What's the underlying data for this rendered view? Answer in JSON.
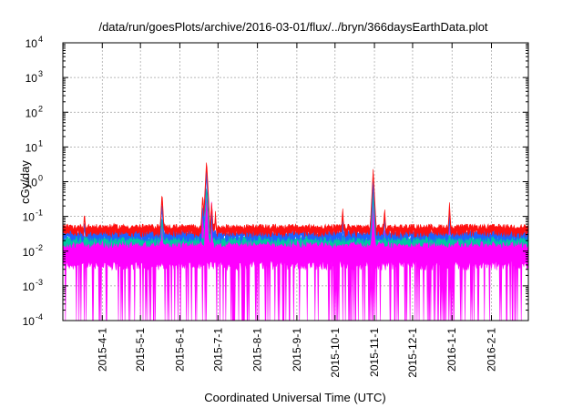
{
  "chart_data": {
    "type": "line",
    "title": "/data/run/goesPlots/archive/2016-03-01/flux/../bryn/366daysEarthData.plot",
    "xlabel": "Coordinated Universal Time (UTC)",
    "ylabel": "cGy/day",
    "xlim": [
      "2015-03-01",
      "2016-03-01"
    ],
    "ylim": [
      0.0001,
      10000
    ],
    "yscale": "log",
    "grid": true,
    "x_ticks": [
      "2015-4-1",
      "2015-5-1",
      "2015-6-1",
      "2015-7-1",
      "2015-8-1",
      "2015-9-1",
      "2015-10-1",
      "2015-11-1",
      "2015-12-1",
      "2016-1-1",
      "2016-2-1"
    ],
    "y_ticks": [
      {
        "base": "10",
        "exp": "-4",
        "value": 0.0001
      },
      {
        "base": "10",
        "exp": "-3",
        "value": 0.001
      },
      {
        "base": "10",
        "exp": "-2",
        "value": 0.01
      },
      {
        "base": "10",
        "exp": "-1",
        "value": 0.1
      },
      {
        "base": "10",
        "exp": "0",
        "value": 1
      },
      {
        "base": "10",
        "exp": "1",
        "value": 10
      },
      {
        "base": "10",
        "exp": "2",
        "value": 100
      },
      {
        "base": "10",
        "exp": "3",
        "value": 1000
      },
      {
        "base": "10",
        "exp": "4",
        "value": 10000
      }
    ],
    "series": [
      {
        "color": "#ff00ff",
        "baseline": 0.02,
        "low": 0.004,
        "dropouts_to": 0.0001,
        "spikes": [
          {
            "x": "2015-03-18",
            "y": 0.04
          },
          {
            "x": "2015-05-18",
            "y": 0.1
          },
          {
            "x": "2015-06-19",
            "y": 0.2
          },
          {
            "x": "2015-06-22",
            "y": 0.5
          },
          {
            "x": "2015-06-26",
            "y": 0.3
          },
          {
            "x": "2015-10-31",
            "y": 0.3
          },
          {
            "x": "2015-11-09",
            "y": 0.05
          },
          {
            "x": "2015-12-30",
            "y": 0.05
          }
        ]
      },
      {
        "color": "#00c8a0",
        "baseline": 0.025,
        "spikes": [
          {
            "x": "2015-05-18",
            "y": 0.12
          },
          {
            "x": "2015-06-22",
            "y": 0.8
          },
          {
            "x": "2015-06-26",
            "y": 0.15
          },
          {
            "x": "2015-10-31",
            "y": 0.5
          }
        ]
      },
      {
        "color": "#1e60ff",
        "baseline": 0.035,
        "spikes": [
          {
            "x": "2015-03-18",
            "y": 0.09
          },
          {
            "x": "2015-05-18",
            "y": 0.3
          },
          {
            "x": "2015-06-19",
            "y": 0.25
          },
          {
            "x": "2015-06-22",
            "y": 2.5
          },
          {
            "x": "2015-06-26",
            "y": 0.15
          },
          {
            "x": "2015-10-07",
            "y": 0.09
          },
          {
            "x": "2015-10-31",
            "y": 1.2
          },
          {
            "x": "2015-11-09",
            "y": 0.12
          },
          {
            "x": "2015-12-30",
            "y": 0.12
          }
        ]
      },
      {
        "color": "#ff1010",
        "baseline": 0.05,
        "spikes": [
          {
            "x": "2015-03-18",
            "y": 0.15
          },
          {
            "x": "2015-04-10",
            "y": 0.08
          },
          {
            "x": "2015-05-18",
            "y": 0.55
          },
          {
            "x": "2015-06-19",
            "y": 0.5
          },
          {
            "x": "2015-06-22",
            "y": 4.5
          },
          {
            "x": "2015-06-26",
            "y": 0.28
          },
          {
            "x": "2015-06-29",
            "y": 0.15
          },
          {
            "x": "2015-10-07",
            "y": 0.2
          },
          {
            "x": "2015-10-31",
            "y": 2.3
          },
          {
            "x": "2015-11-09",
            "y": 0.2
          },
          {
            "x": "2015-12-30",
            "y": 0.26
          }
        ]
      }
    ]
  }
}
